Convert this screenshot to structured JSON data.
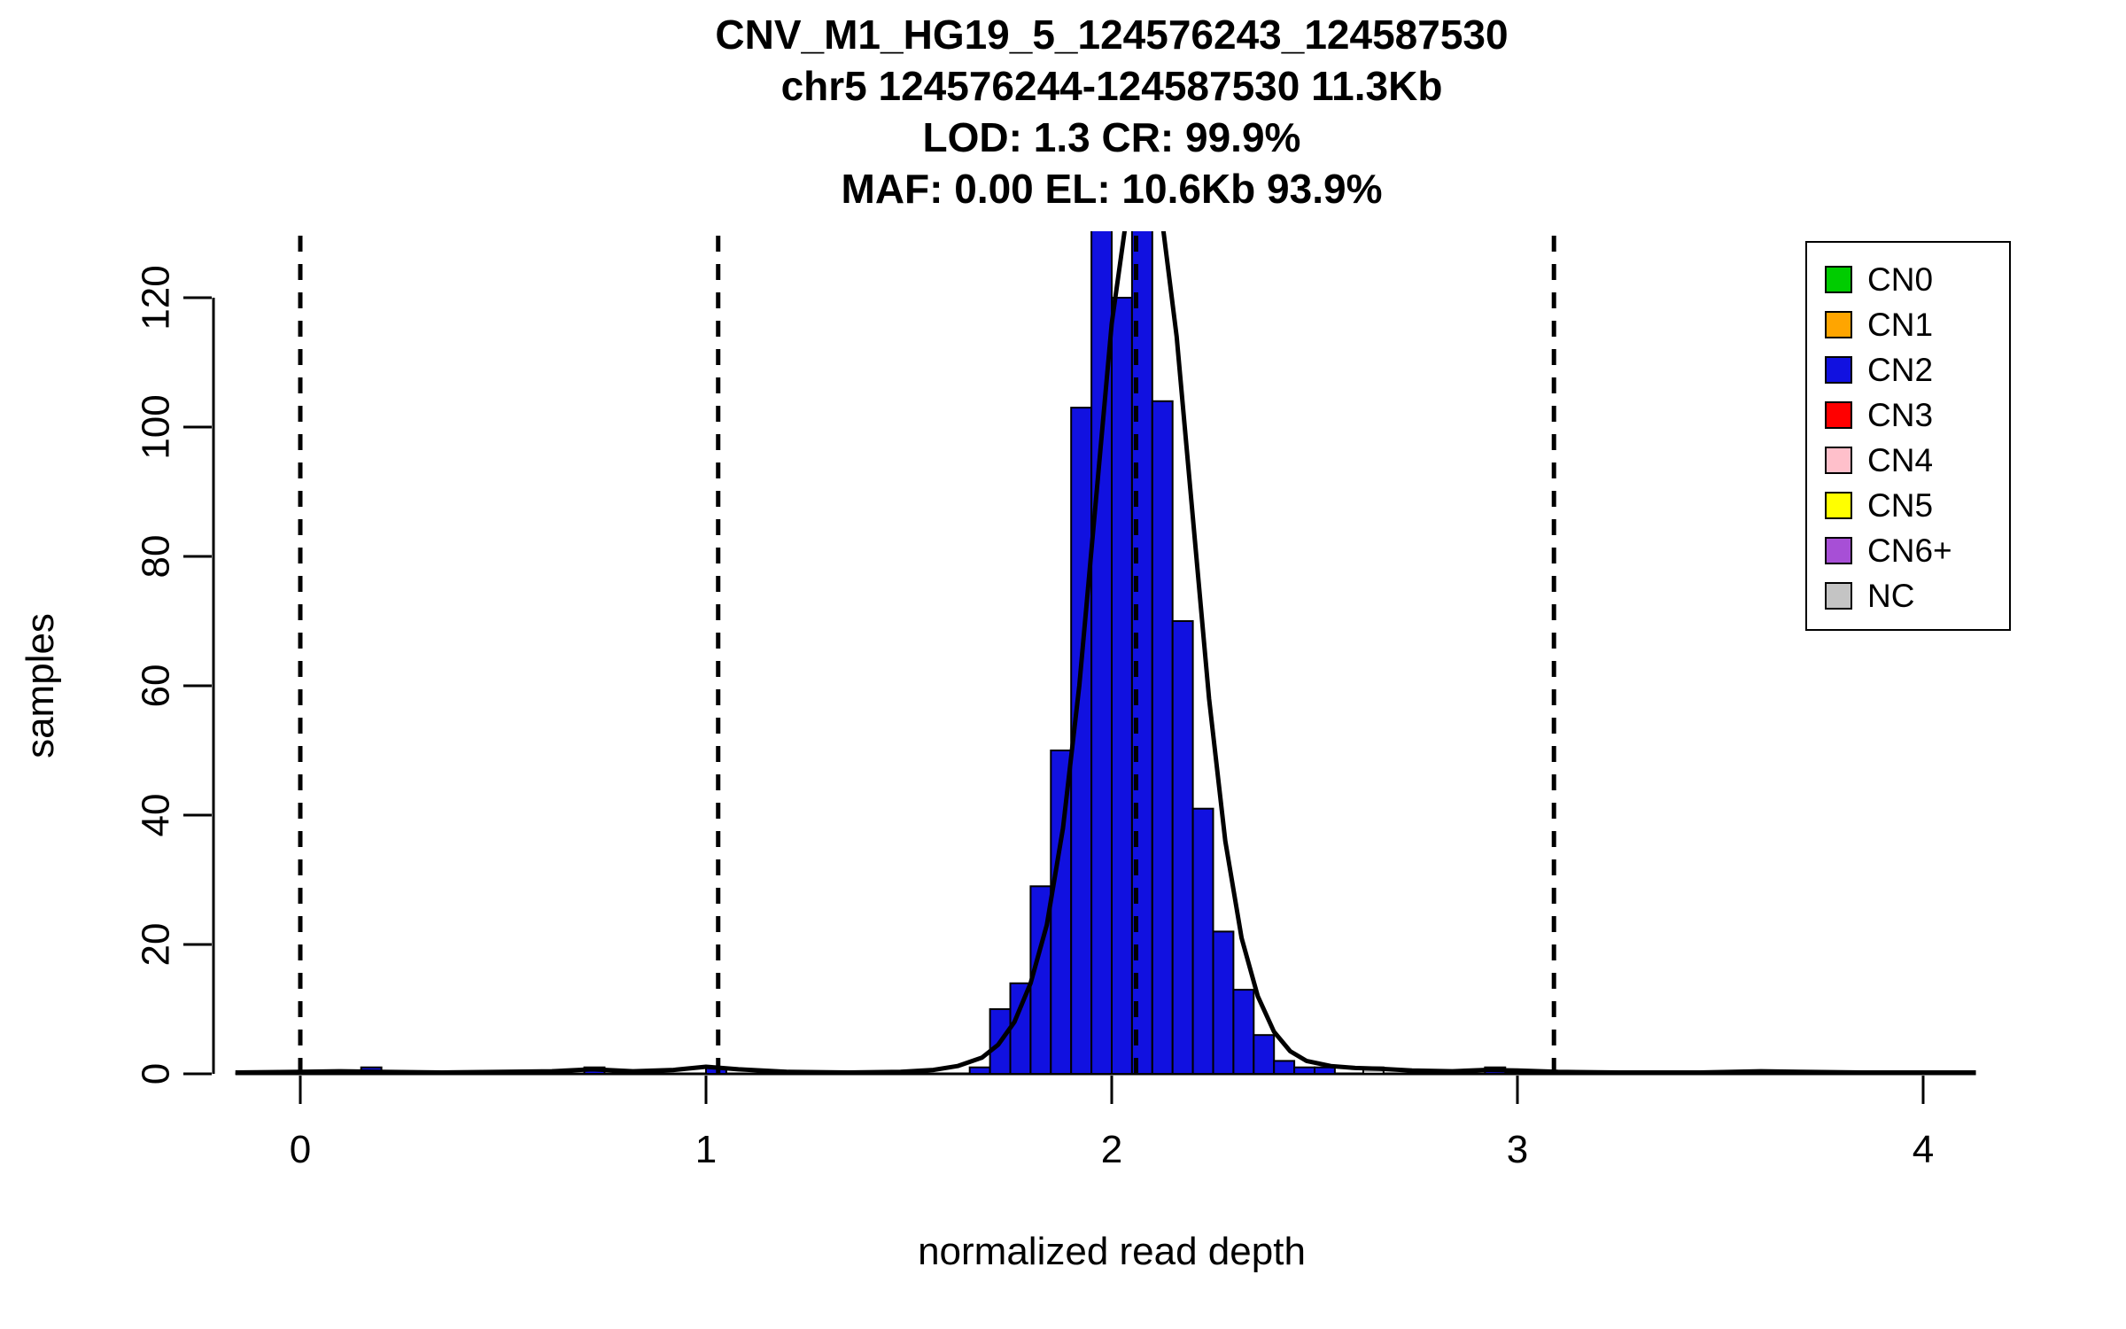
{
  "chart_data": {
    "type": "bar",
    "title_lines": [
      "CNV_M1_HG19_5_124576243_124587530",
      "chr5 124576244-124587530 11.3Kb",
      "LOD: 1.3 CR: 99.9%",
      "MAF: 0.00 EL: 10.6Kb 93.9%"
    ],
    "xlabel": "normalized read depth",
    "ylabel": "samples",
    "xticks": [
      0,
      1,
      2,
      3,
      4
    ],
    "yticks": [
      0,
      20,
      40,
      60,
      80,
      100,
      120
    ],
    "xlim": [
      -0.16,
      4.13
    ],
    "ylim": [
      0,
      130
    ],
    "bin_width": 0.05,
    "grid": false,
    "legend_position": "top-right",
    "vlines": [
      0,
      1.03,
      2.06,
      3.09
    ],
    "colors": {
      "CN0": "#00CC00",
      "CN1": "#FFA500",
      "CN2": "#1111E0",
      "CN3": "#FF0000",
      "CN4": "#FFC0CB",
      "CN5": "#FFFF00",
      "CN6+": "#A74FD6",
      "NC": "#C4C4C4"
    },
    "legend": [
      "CN0",
      "CN1",
      "CN2",
      "CN3",
      "CN4",
      "CN5",
      "CN6+",
      "NC"
    ],
    "histogram": [
      {
        "x": 0.15,
        "count": 1,
        "cn": "CN2"
      },
      {
        "x": 0.7,
        "count": 1,
        "cn": "CN2"
      },
      {
        "x": 1.0,
        "count": 1,
        "cn": "CN2"
      },
      {
        "x": 1.65,
        "count": 1,
        "cn": "CN2"
      },
      {
        "x": 1.7,
        "count": 10,
        "cn": "CN2"
      },
      {
        "x": 1.75,
        "count": 14,
        "cn": "CN2"
      },
      {
        "x": 1.8,
        "count": 29,
        "cn": "CN2"
      },
      {
        "x": 1.85,
        "count": 50,
        "cn": "CN2"
      },
      {
        "x": 1.9,
        "count": 103,
        "cn": "CN2"
      },
      {
        "x": 1.95,
        "count": 133,
        "cn": "CN2"
      },
      {
        "x": 2.0,
        "count": 120,
        "cn": "CN2"
      },
      {
        "x": 2.05,
        "count": 137,
        "cn": "CN2"
      },
      {
        "x": 2.1,
        "count": 104,
        "cn": "CN2"
      },
      {
        "x": 2.15,
        "count": 70,
        "cn": "CN2"
      },
      {
        "x": 2.2,
        "count": 41,
        "cn": "CN2"
      },
      {
        "x": 2.25,
        "count": 22,
        "cn": "CN2"
      },
      {
        "x": 2.3,
        "count": 13,
        "cn": "CN2"
      },
      {
        "x": 2.35,
        "count": 6,
        "cn": "CN2"
      },
      {
        "x": 2.4,
        "count": 2,
        "cn": "CN2"
      },
      {
        "x": 2.45,
        "count": 1,
        "cn": "CN2"
      },
      {
        "x": 2.5,
        "count": 1,
        "cn": "CN2"
      },
      {
        "x": 2.62,
        "count": 1,
        "cn": "NC"
      },
      {
        "x": 2.92,
        "count": 1,
        "cn": "CN2"
      }
    ],
    "density_curve": [
      [
        -0.16,
        0.2
      ],
      [
        0.0,
        0.3
      ],
      [
        0.1,
        0.4
      ],
      [
        0.2,
        0.3
      ],
      [
        0.35,
        0.2
      ],
      [
        0.5,
        0.3
      ],
      [
        0.62,
        0.4
      ],
      [
        0.72,
        0.7
      ],
      [
        0.82,
        0.4
      ],
      [
        0.92,
        0.6
      ],
      [
        1.0,
        1.1
      ],
      [
        1.08,
        0.7
      ],
      [
        1.2,
        0.3
      ],
      [
        1.35,
        0.2
      ],
      [
        1.48,
        0.3
      ],
      [
        1.56,
        0.6
      ],
      [
        1.62,
        1.2
      ],
      [
        1.68,
        2.5
      ],
      [
        1.72,
        4.5
      ],
      [
        1.76,
        8
      ],
      [
        1.8,
        14
      ],
      [
        1.84,
        23
      ],
      [
        1.88,
        38
      ],
      [
        1.92,
        60
      ],
      [
        1.96,
        88
      ],
      [
        2.0,
        116
      ],
      [
        2.04,
        134
      ],
      [
        2.08,
        141
      ],
      [
        2.12,
        134
      ],
      [
        2.16,
        114
      ],
      [
        2.2,
        86
      ],
      [
        2.24,
        58
      ],
      [
        2.28,
        36
      ],
      [
        2.32,
        21
      ],
      [
        2.36,
        12
      ],
      [
        2.4,
        6.5
      ],
      [
        2.44,
        3.5
      ],
      [
        2.48,
        2
      ],
      [
        2.54,
        1.2
      ],
      [
        2.6,
        0.9
      ],
      [
        2.66,
        0.8
      ],
      [
        2.74,
        0.5
      ],
      [
        2.84,
        0.4
      ],
      [
        2.92,
        0.6
      ],
      [
        3.0,
        0.5
      ],
      [
        3.1,
        0.3
      ],
      [
        3.25,
        0.2
      ],
      [
        3.45,
        0.2
      ],
      [
        3.6,
        0.4
      ],
      [
        3.7,
        0.3
      ],
      [
        3.85,
        0.2
      ],
      [
        4.0,
        0.2
      ],
      [
        4.13,
        0.2
      ]
    ]
  }
}
